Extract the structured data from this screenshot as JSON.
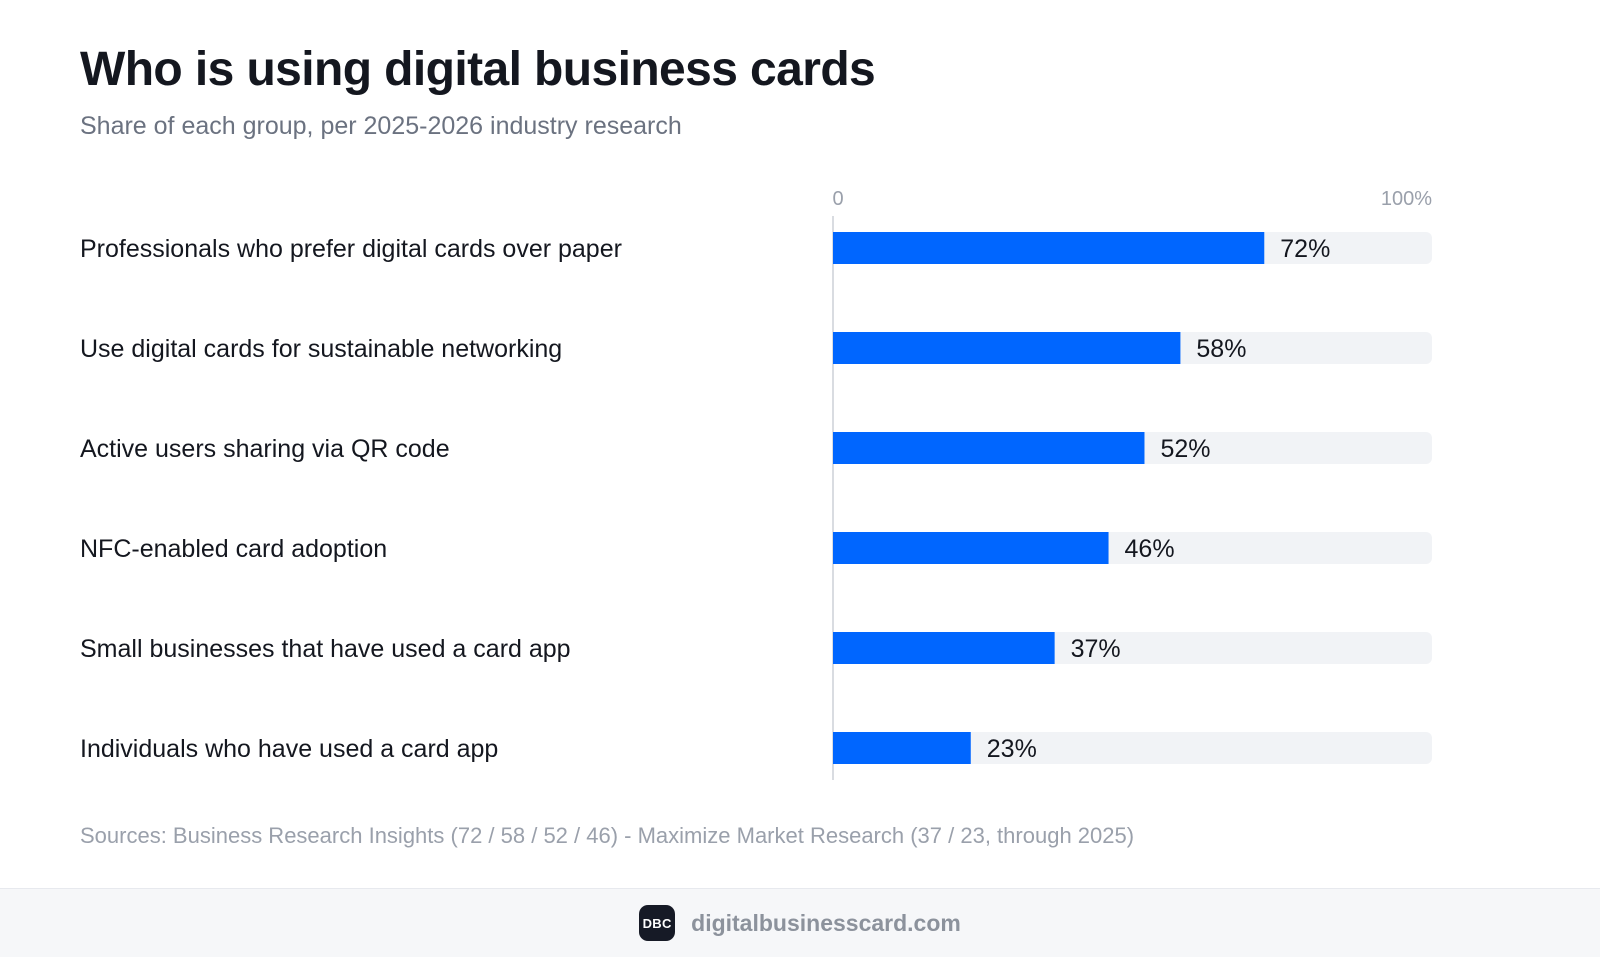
{
  "header": {
    "title": "Who is using digital business cards",
    "subtitle": "Share of each group, per 2025-2026 industry research"
  },
  "chart_data": {
    "type": "bar",
    "orientation": "horizontal",
    "categories": [
      "Professionals who prefer digital cards over paper",
      "Use digital cards for sustainable networking",
      "Active users sharing via QR code",
      "NFC-enabled card adoption",
      "Small businesses that have used a card app",
      "Individuals who have used a card app"
    ],
    "values": [
      72,
      58,
      52,
      46,
      37,
      23
    ],
    "value_labels": [
      "72%",
      "58%",
      "52%",
      "46%",
      "37%",
      "23%"
    ],
    "axis_ticks": [
      "0",
      "100%"
    ],
    "xlim": [
      0,
      100
    ],
    "colors": {
      "bar": "#0066ff",
      "track": "#f1f3f6",
      "axis": "#d9dce1"
    },
    "grid": false,
    "legend": "none"
  },
  "footer": {
    "source": "Sources: Business Research Insights (72 / 58 / 52 / 46) - Maximize Market Research (37 / 23, through 2025)",
    "logo_text": "DBC",
    "domain": "digitalbusinesscard.com"
  }
}
